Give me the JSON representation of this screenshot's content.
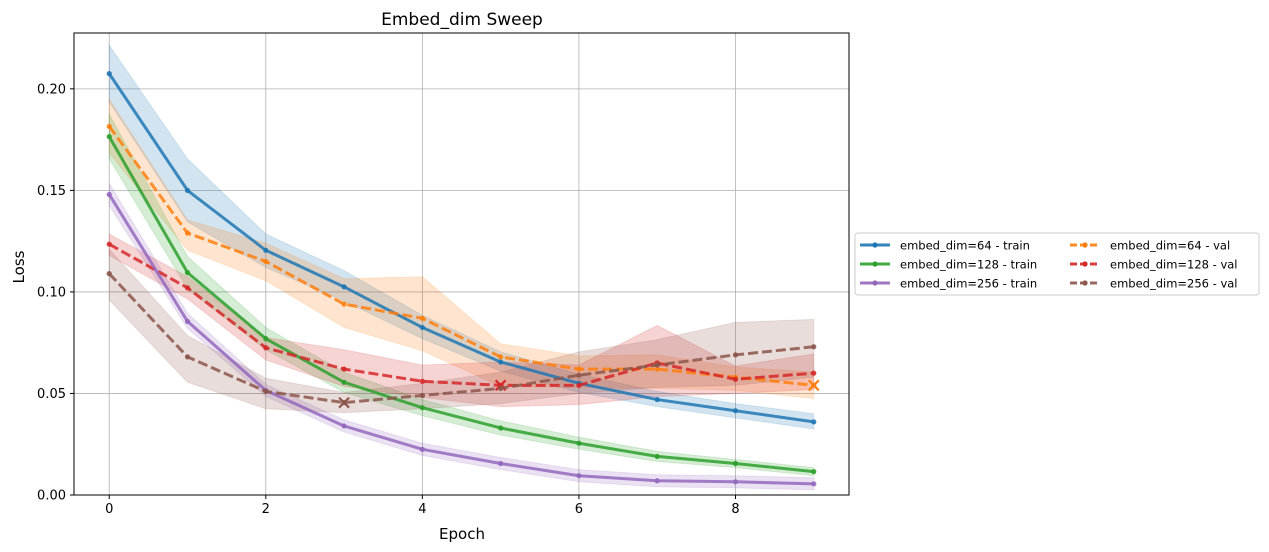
{
  "chart_data": {
    "type": "line",
    "title": "Embed_dim Sweep",
    "xlabel": "Epoch",
    "ylabel": "Loss",
    "xlim": [
      -0.45,
      9.45
    ],
    "ylim": [
      0,
      0.2275
    ],
    "xticks": [
      0,
      2,
      4,
      6,
      8
    ],
    "yticks": [
      0.0,
      0.05,
      0.1,
      0.15,
      0.2
    ],
    "xtick_labels": [
      "0",
      "2",
      "4",
      "6",
      "8"
    ],
    "ytick_labels": [
      "0.00",
      "0.05",
      "0.10",
      "0.15",
      "0.20"
    ],
    "grid": true,
    "legend_position": "outside right",
    "x": [
      0,
      1,
      2,
      3,
      4,
      5,
      6,
      7,
      8,
      9
    ],
    "series": [
      {
        "name": "embed_dim=64 - train",
        "color": "#1f77b4",
        "dashed": false,
        "values": [
          0.2075,
          0.15,
          0.1205,
          0.1025,
          0.0825,
          0.0655,
          0.055,
          0.047,
          0.0415,
          0.036
        ],
        "lower": [
          0.1935,
          0.1345,
          0.112,
          0.0955,
          0.077,
          0.061,
          0.0505,
          0.0435,
          0.038,
          0.0325
        ],
        "upper": [
          0.2215,
          0.1655,
          0.1285,
          0.1105,
          0.0885,
          0.0705,
          0.0595,
          0.051,
          0.045,
          0.04
        ],
        "best_epoch": null
      },
      {
        "name": "embed_dim=64 - val",
        "color": "#ff7f0e",
        "dashed": true,
        "values": [
          0.1815,
          0.129,
          0.115,
          0.094,
          0.087,
          0.068,
          0.062,
          0.062,
          0.058,
          0.054
        ],
        "lower": [
          0.1685,
          0.1205,
          0.1055,
          0.0825,
          0.071,
          0.0535,
          0.053,
          0.0525,
          0.0515,
          0.0475
        ],
        "upper": [
          0.195,
          0.1355,
          0.124,
          0.1065,
          0.1075,
          0.0745,
          0.0685,
          0.069,
          0.063,
          0.0605
        ],
        "best_epoch": 9
      },
      {
        "name": "embed_dim=128 - train",
        "color": "#2ca02c",
        "dashed": false,
        "values": [
          0.1765,
          0.1095,
          0.077,
          0.0555,
          0.043,
          0.033,
          0.0255,
          0.019,
          0.0155,
          0.0115
        ],
        "lower": [
          0.1655,
          0.1015,
          0.0715,
          0.0505,
          0.039,
          0.0295,
          0.0225,
          0.0165,
          0.0135,
          0.0095
        ],
        "upper": [
          0.1875,
          0.1175,
          0.0825,
          0.0605,
          0.047,
          0.0365,
          0.0285,
          0.0215,
          0.0175,
          0.0135
        ],
        "best_epoch": null
      },
      {
        "name": "embed_dim=128 - val",
        "color": "#d62728",
        "dashed": true,
        "values": [
          0.1235,
          0.102,
          0.0725,
          0.062,
          0.056,
          0.054,
          0.054,
          0.065,
          0.057,
          0.06
        ],
        "lower": [
          0.118,
          0.0965,
          0.0665,
          0.0535,
          0.048,
          0.0435,
          0.0445,
          0.0485,
          0.05,
          0.052
        ],
        "upper": [
          0.1285,
          0.1075,
          0.0775,
          0.0715,
          0.064,
          0.0655,
          0.064,
          0.0835,
          0.0635,
          0.0695
        ],
        "best_epoch": 5
      },
      {
        "name": "embed_dim=256 - train",
        "color": "#9467bd",
        "dashed": false,
        "values": [
          0.148,
          0.0855,
          0.0515,
          0.034,
          0.0225,
          0.0155,
          0.0095,
          0.007,
          0.0065,
          0.0055
        ],
        "lower": [
          0.1425,
          0.082,
          0.0485,
          0.031,
          0.0195,
          0.0125,
          0.0065,
          0.004,
          0.0035,
          0.0025
        ],
        "upper": [
          0.1535,
          0.0895,
          0.0545,
          0.037,
          0.0255,
          0.0185,
          0.0125,
          0.01,
          0.0095,
          0.0085
        ],
        "best_epoch": null
      },
      {
        "name": "embed_dim=256 - val",
        "color": "#8c564b",
        "dashed": true,
        "values": [
          0.109,
          0.068,
          0.051,
          0.0455,
          0.049,
          0.0525,
          0.059,
          0.064,
          0.069,
          0.073
        ],
        "lower": [
          0.096,
          0.0555,
          0.0425,
          0.0405,
          0.0425,
          0.045,
          0.05,
          0.053,
          0.054,
          0.058
        ],
        "upper": [
          0.121,
          0.0785,
          0.0575,
          0.0505,
          0.055,
          0.0605,
          0.0705,
          0.0765,
          0.085,
          0.0865
        ],
        "best_epoch": 3
      }
    ]
  }
}
